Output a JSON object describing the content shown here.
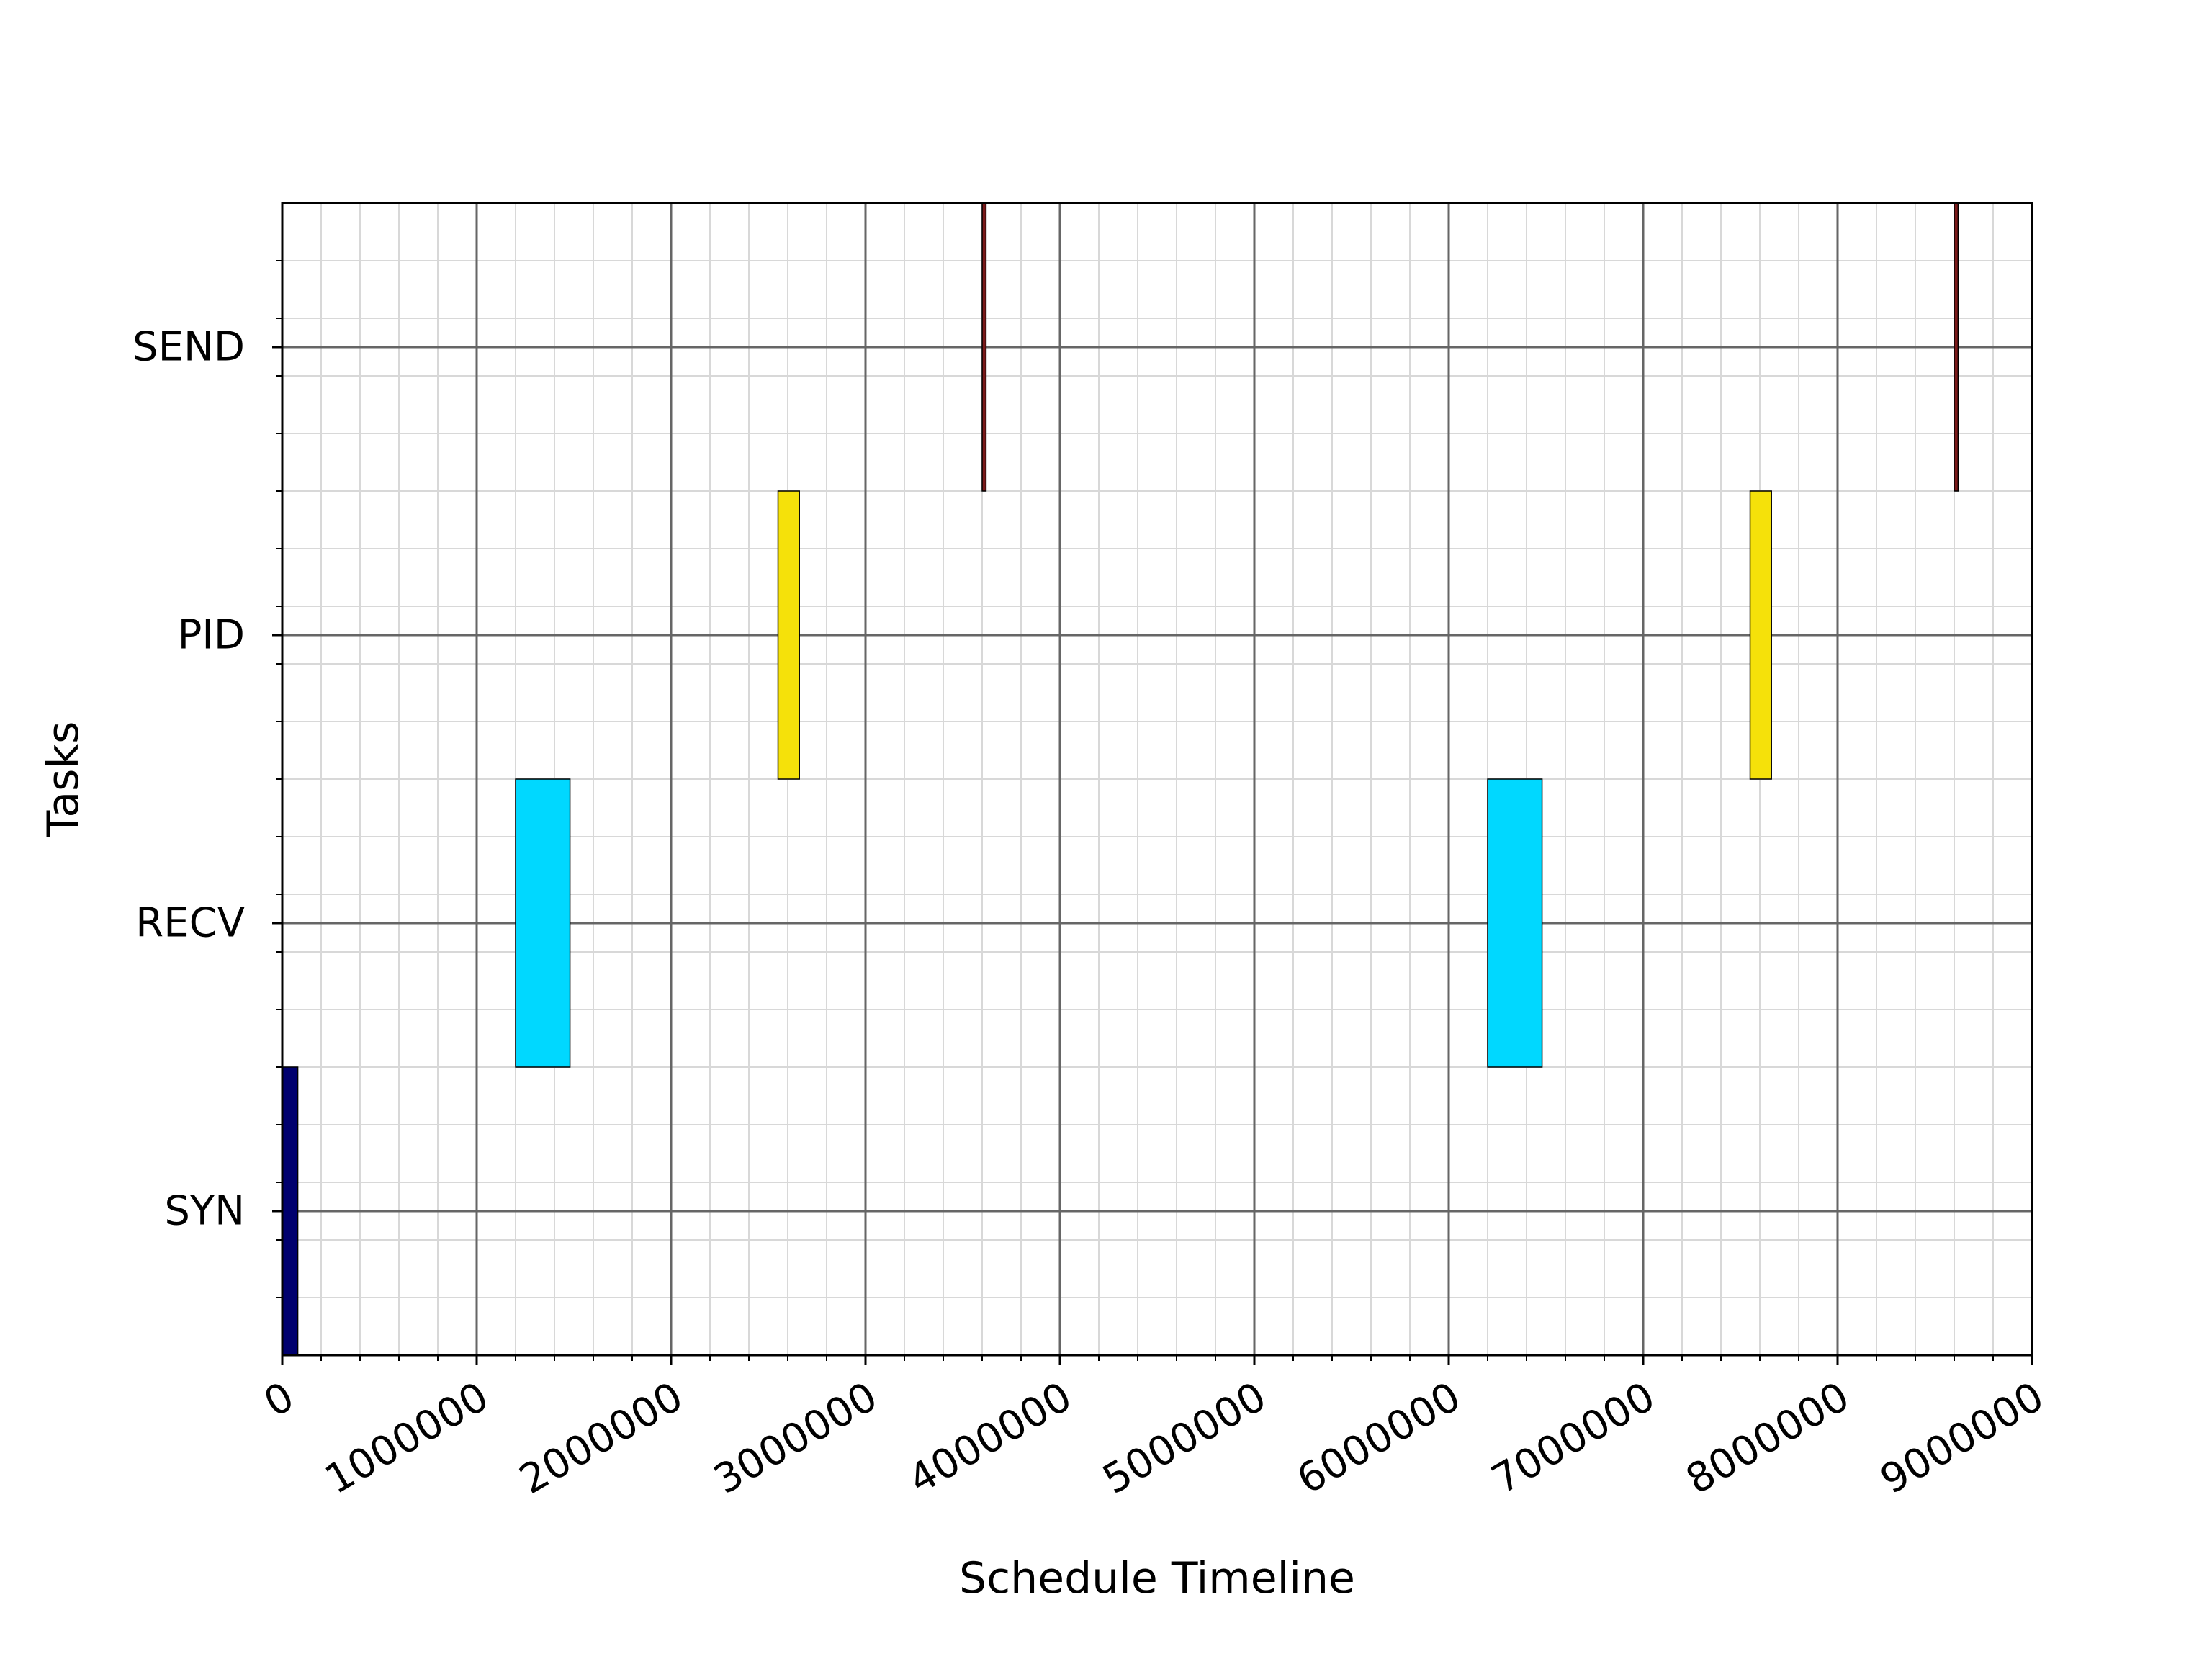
{
  "chart_data": {
    "type": "gantt",
    "xlabel": "Schedule Timeline",
    "ylabel": "Tasks",
    "xlim": [
      0,
      9000000
    ],
    "x_ticks": [
      0,
      1000000,
      2000000,
      3000000,
      4000000,
      5000000,
      6000000,
      7000000,
      8000000,
      9000000
    ],
    "x_tick_labels": [
      "0",
      "1000000",
      "2000000",
      "3000000",
      "4000000",
      "5000000",
      "6000000",
      "7000000",
      "8000000",
      "9000000"
    ],
    "x_minor_step": 200000,
    "categories": [
      "SYN",
      "RECV",
      "PID",
      "SEND"
    ],
    "ylim": [
      -0.5,
      3.5
    ],
    "y_minor_step": 0.2,
    "grid": true,
    "colors": {
      "SYN": "#00006e",
      "RECV": "#00d8ff",
      "PID": "#f5e10a",
      "SEND": "#7a1a1a"
    },
    "tasks": [
      {
        "task": "SYN",
        "start": 0,
        "end": 80000
      },
      {
        "task": "RECV",
        "start": 1200000,
        "end": 1480000
      },
      {
        "task": "PID",
        "start": 2550000,
        "end": 2660000
      },
      {
        "task": "SEND",
        "start": 3600000,
        "end": 3620000
      },
      {
        "task": "RECV",
        "start": 6200000,
        "end": 6480000
      },
      {
        "task": "PID",
        "start": 7550000,
        "end": 7660000
      },
      {
        "task": "SEND",
        "start": 8600000,
        "end": 8620000
      }
    ]
  }
}
